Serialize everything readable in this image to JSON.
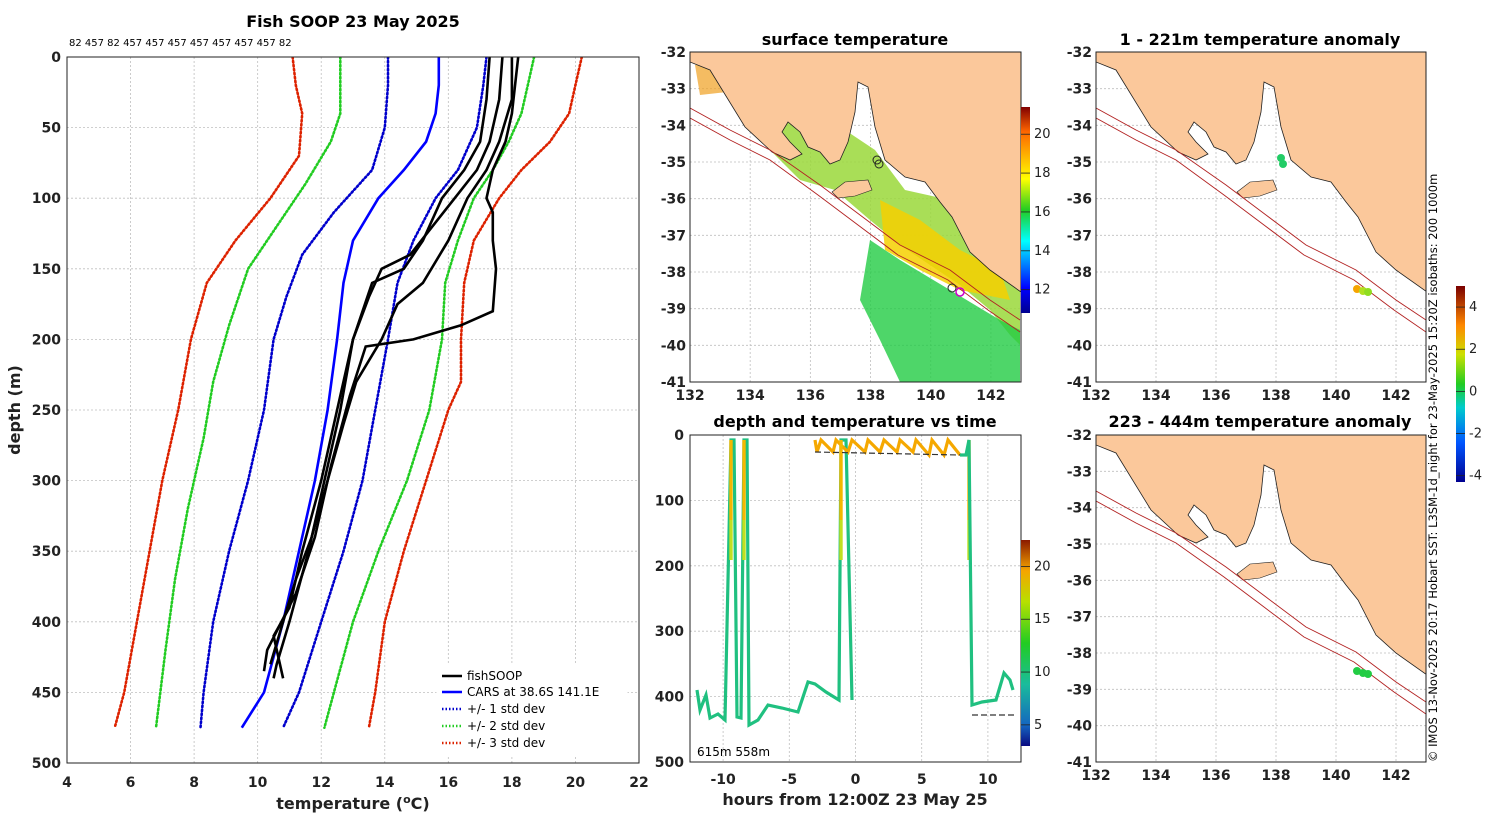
{
  "colors": {
    "black": "#000000",
    "cars": "#0000ff",
    "std1": "#0000cc",
    "std2": "#22cc22",
    "std3": "#dd2200",
    "land": "#fbc89b",
    "isobath": "#b22222"
  },
  "chart_data": [
    {
      "name": "profile",
      "type": "line",
      "title": "Fish SOOP 23 May 2025",
      "top_labels": "82 457 82 457 457 457 457 457 457 457 82",
      "xlabel": "temperature (",
      "xlabel_unit_sup": "o",
      "xlabel_unit_tail": "C)",
      "ylabel": "depth (m)",
      "xlim": [
        4,
        22
      ],
      "ylim": [
        0,
        500
      ],
      "xticks": [
        4,
        6,
        8,
        10,
        12,
        14,
        16,
        18,
        20,
        22
      ],
      "yticks": [
        0,
        50,
        100,
        150,
        200,
        250,
        300,
        350,
        400,
        450,
        500
      ],
      "legend": [
        "fishSOOP",
        "CARS at 38.6S 141.1E",
        "+/- 1 std dev",
        "+/- 2 std dev",
        "+/- 3 std dev"
      ],
      "series": [
        {
          "name": "CARS",
          "style": "solid",
          "color": "#0000ff",
          "points": [
            [
              15.7,
              0
            ],
            [
              15.7,
              20
            ],
            [
              15.6,
              40
            ],
            [
              15.3,
              60
            ],
            [
              14.6,
              80
            ],
            [
              13.8,
              100
            ],
            [
              13.0,
              130
            ],
            [
              12.7,
              160
            ],
            [
              12.5,
              200
            ],
            [
              12.2,
              250
            ],
            [
              11.8,
              300
            ],
            [
              11.3,
              350
            ],
            [
              10.8,
              400
            ],
            [
              10.2,
              450
            ],
            [
              9.5,
              475
            ]
          ]
        },
        {
          "name": "+1 std",
          "style": "dot",
          "color": "#0000cc",
          "points": [
            [
              17.2,
              0
            ],
            [
              17.1,
              20
            ],
            [
              16.9,
              50
            ],
            [
              16.3,
              80
            ],
            [
              15.6,
              100
            ],
            [
              14.9,
              130
            ],
            [
              14.4,
              160
            ],
            [
              14.1,
              200
            ],
            [
              13.7,
              250
            ],
            [
              13.3,
              300
            ],
            [
              12.7,
              350
            ],
            [
              12.0,
              400
            ],
            [
              11.3,
              450
            ],
            [
              10.8,
              475
            ]
          ]
        },
        {
          "name": "-1 std",
          "style": "dot",
          "color": "#0000cc",
          "points": [
            [
              14.1,
              0
            ],
            [
              14.1,
              20
            ],
            [
              14.0,
              50
            ],
            [
              13.6,
              80
            ],
            [
              12.4,
              110
            ],
            [
              11.4,
              140
            ],
            [
              10.9,
              170
            ],
            [
              10.5,
              200
            ],
            [
              10.2,
              250
            ],
            [
              9.7,
              300
            ],
            [
              9.1,
              350
            ],
            [
              8.6,
              400
            ],
            [
              8.3,
              450
            ],
            [
              8.2,
              475
            ]
          ]
        },
        {
          "name": "+2 std",
          "style": "dot",
          "color": "#22cc22",
          "points": [
            [
              18.7,
              0
            ],
            [
              18.5,
              20
            ],
            [
              18.3,
              40
            ],
            [
              17.9,
              60
            ],
            [
              17.4,
              80
            ],
            [
              16.8,
              100
            ],
            [
              16.3,
              130
            ],
            [
              15.9,
              160
            ],
            [
              15.8,
              200
            ],
            [
              15.4,
              250
            ],
            [
              14.7,
              300
            ],
            [
              13.8,
              350
            ],
            [
              13.0,
              400
            ],
            [
              12.4,
              450
            ],
            [
              12.1,
              475
            ]
          ]
        },
        {
          "name": "-2 std",
          "style": "dot",
          "color": "#22cc22",
          "points": [
            [
              12.6,
              0
            ],
            [
              12.6,
              20
            ],
            [
              12.6,
              40
            ],
            [
              12.3,
              60
            ],
            [
              11.5,
              90
            ],
            [
              10.6,
              120
            ],
            [
              9.7,
              150
            ],
            [
              9.1,
              190
            ],
            [
              8.6,
              230
            ],
            [
              8.3,
              270
            ],
            [
              7.8,
              320
            ],
            [
              7.4,
              370
            ],
            [
              7.1,
              420
            ],
            [
              6.8,
              475
            ]
          ]
        },
        {
          "name": "+3 std",
          "style": "dot",
          "color": "#dd2200",
          "points": [
            [
              20.2,
              0
            ],
            [
              20.0,
              20
            ],
            [
              19.8,
              40
            ],
            [
              19.2,
              60
            ],
            [
              18.3,
              80
            ],
            [
              17.6,
              100
            ],
            [
              16.8,
              130
            ],
            [
              16.5,
              160
            ],
            [
              16.4,
              200
            ],
            [
              16.4,
              230
            ],
            [
              16.0,
              250
            ],
            [
              15.3,
              300
            ],
            [
              14.6,
              350
            ],
            [
              14.0,
              400
            ],
            [
              13.7,
              450
            ],
            [
              13.5,
              475
            ]
          ]
        },
        {
          "name": "-3 std",
          "style": "dot",
          "color": "#dd2200",
          "points": [
            [
              11.1,
              0
            ],
            [
              11.2,
              20
            ],
            [
              11.4,
              40
            ],
            [
              11.3,
              70
            ],
            [
              10.4,
              100
            ],
            [
              9.3,
              130
            ],
            [
              8.4,
              160
            ],
            [
              7.9,
              200
            ],
            [
              7.5,
              250
            ],
            [
              7.0,
              300
            ],
            [
              6.6,
              350
            ],
            [
              6.2,
              400
            ],
            [
              5.8,
              450
            ],
            [
              5.5,
              475
            ]
          ]
        },
        {
          "name": "fishSOOP a",
          "style": "solid",
          "color": "#000000",
          "points": [
            [
              17.3,
              0
            ],
            [
              17.2,
              30
            ],
            [
              17.0,
              60
            ],
            [
              16.5,
              80
            ],
            [
              15.8,
              100
            ],
            [
              15.2,
              130
            ],
            [
              14.6,
              150
            ],
            [
              13.6,
              160
            ],
            [
              13.0,
              200
            ],
            [
              12.6,
              250
            ],
            [
              12.1,
              300
            ],
            [
              11.6,
              350
            ],
            [
              11.0,
              400
            ],
            [
              10.6,
              430
            ],
            [
              10.5,
              440
            ]
          ]
        },
        {
          "name": "fishSOOP b",
          "style": "solid",
          "color": "#000000",
          "points": [
            [
              17.7,
              0
            ],
            [
              17.6,
              30
            ],
            [
              17.3,
              60
            ],
            [
              16.9,
              80
            ],
            [
              16.2,
              100
            ],
            [
              15.5,
              120
            ],
            [
              14.8,
              140
            ],
            [
              13.9,
              150
            ],
            [
              13.5,
              170
            ],
            [
              13.0,
              200
            ],
            [
              12.5,
              250
            ],
            [
              12.0,
              300
            ],
            [
              11.4,
              350
            ],
            [
              11.0,
              390
            ],
            [
              10.5,
              410
            ],
            [
              10.8,
              440
            ]
          ]
        },
        {
          "name": "fishSOOP c",
          "style": "solid",
          "color": "#000000",
          "points": [
            [
              18.2,
              0
            ],
            [
              18.0,
              40
            ],
            [
              17.8,
              60
            ],
            [
              17.4,
              80
            ],
            [
              17.2,
              100
            ],
            [
              17.4,
              110
            ],
            [
              17.4,
              130
            ],
            [
              17.5,
              150
            ],
            [
              17.4,
              180
            ],
            [
              16.4,
              190
            ],
            [
              14.9,
              200
            ],
            [
              13.4,
              205
            ],
            [
              12.9,
              240
            ],
            [
              12.3,
              290
            ],
            [
              11.8,
              340
            ],
            [
              11.2,
              380
            ],
            [
              10.3,
              420
            ],
            [
              10.2,
              435
            ]
          ]
        },
        {
          "name": "fishSOOP d",
          "style": "solid",
          "color": "#000000",
          "points": [
            [
              18.0,
              0
            ],
            [
              18.0,
              30
            ],
            [
              17.6,
              60
            ],
            [
              17.2,
              80
            ],
            [
              16.6,
              100
            ],
            [
              16.0,
              130
            ],
            [
              15.2,
              160
            ],
            [
              14.4,
              175
            ],
            [
              13.9,
              200
            ],
            [
              13.1,
              230
            ],
            [
              12.7,
              260
            ],
            [
              12.2,
              300
            ],
            [
              11.7,
              340
            ],
            [
              11.2,
              370
            ],
            [
              10.8,
              400
            ],
            [
              10.4,
              430
            ]
          ]
        }
      ]
    },
    {
      "name": "surface-temperature-map",
      "type": "heatmap",
      "title": "surface temperature",
      "xlim": [
        132,
        143
      ],
      "ylim": [
        -41,
        -32
      ],
      "xticks": [
        132,
        134,
        136,
        138,
        140,
        142
      ],
      "yticks": [
        -32,
        -33,
        -34,
        -35,
        -36,
        -37,
        -38,
        -39,
        -40,
        -41
      ],
      "colorbar_ticks": [
        12,
        14,
        16,
        18,
        20
      ]
    },
    {
      "name": "depth-temp-time",
      "type": "scatter",
      "title": "depth and temperature vs time",
      "xlabel": "hours from 12:00Z 23 May 25",
      "xlim": [
        -12.5,
        12.5
      ],
      "ylim": [
        0,
        500
      ],
      "xticks": [
        -10,
        -5,
        0,
        5,
        10
      ],
      "yticks": [
        0,
        100,
        200,
        300,
        400,
        500
      ],
      "colorbar_ticks": [
        5,
        10,
        15,
        20
      ],
      "annotation": "615m  558m"
    },
    {
      "name": "anomaly-shallow-map",
      "type": "scatter",
      "title": "1 - 221m temperature anomaly",
      "xlim": [
        132,
        143
      ],
      "ylim": [
        -41,
        -32
      ],
      "xticks": [
        132,
        134,
        136,
        138,
        140,
        142
      ],
      "yticks": [
        -32,
        -33,
        -34,
        -35,
        -36,
        -37,
        -38,
        -39,
        -40,
        -41
      ]
    },
    {
      "name": "anomaly-deep-map",
      "type": "scatter",
      "title": "223 - 444m temperature anomaly",
      "xlim": [
        132,
        143
      ],
      "ylim": [
        -41,
        -32
      ],
      "xticks": [
        132,
        134,
        136,
        138,
        140,
        142
      ],
      "yticks": [
        -32,
        -33,
        -34,
        -35,
        -36,
        -37,
        -38,
        -39,
        -40,
        -41
      ],
      "colorbar_ticks": [
        -4,
        -2,
        0,
        2,
        4
      ]
    }
  ],
  "side_caption": "© IMOS 13-Nov-2025 20:17 Hobart SST: L3SM-1d_night for 23-May-2025 15:20Z isobaths: 200  1000m"
}
